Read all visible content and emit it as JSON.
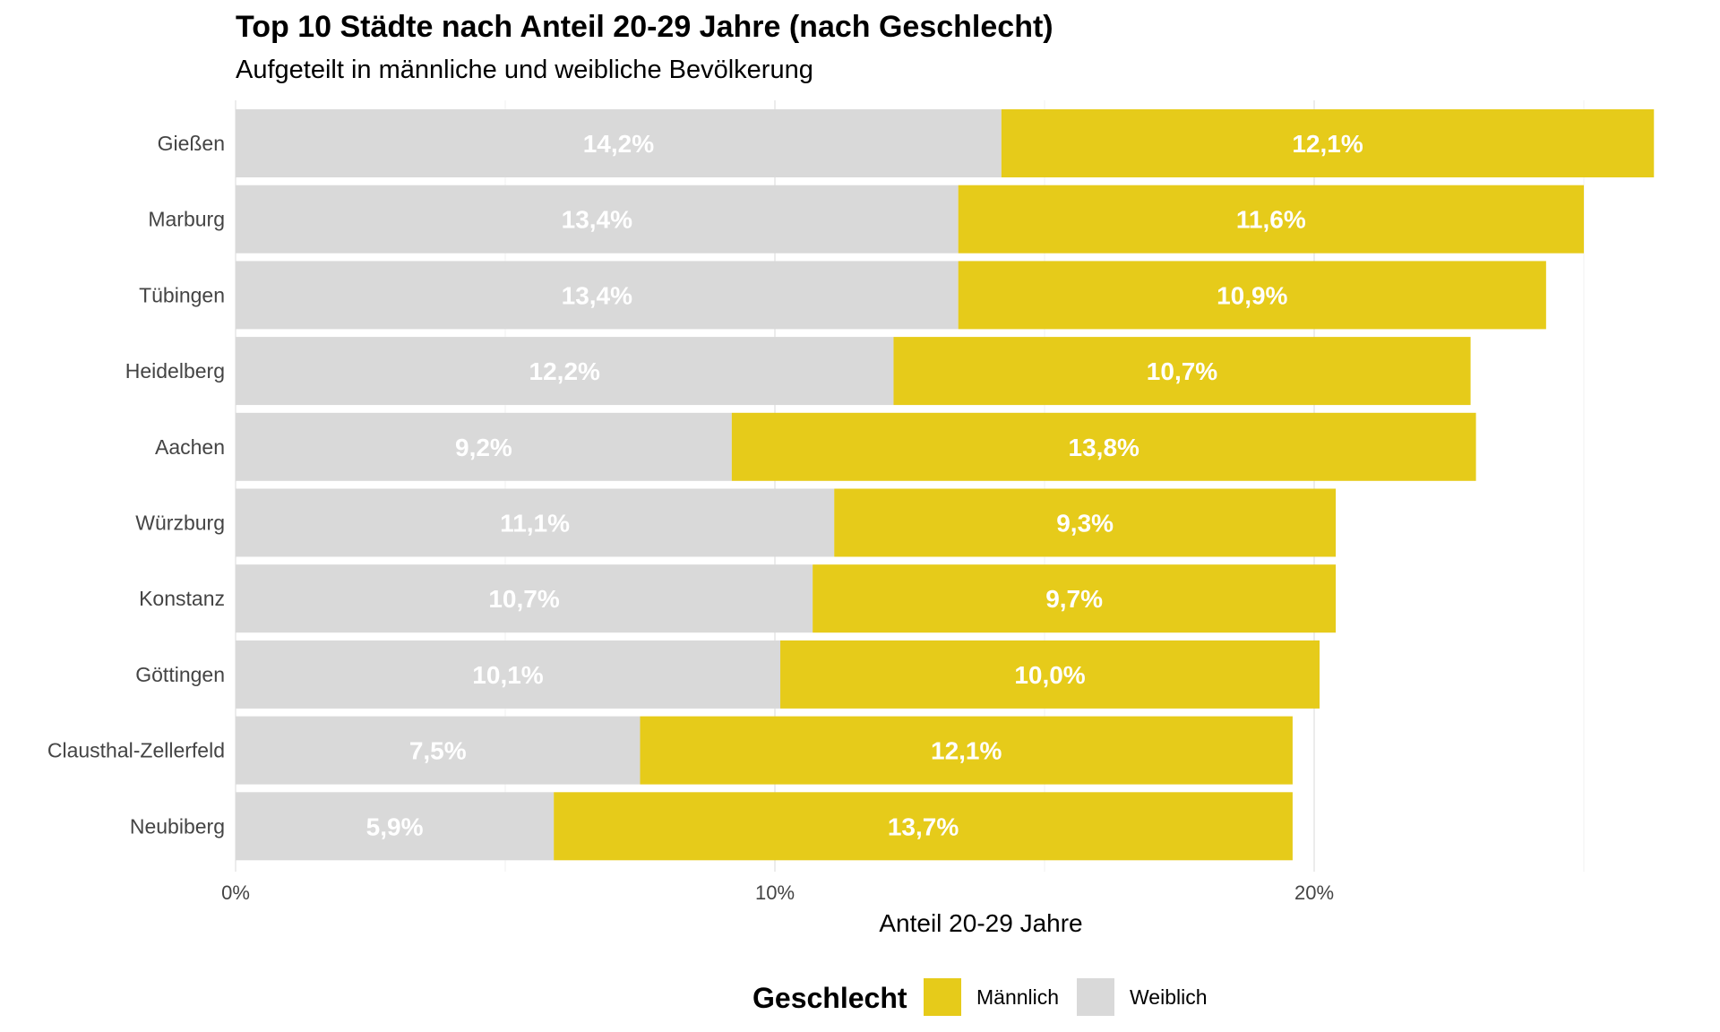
{
  "chart_data": {
    "type": "bar",
    "orientation": "horizontal",
    "stacked": true,
    "title": "Top 10 Städte nach Anteil 20-29 Jahre (nach Geschlecht)",
    "subtitle": "Aufgeteilt in männliche und weibliche Bevölkerung",
    "xlabel": "Anteil 20-29 Jahre",
    "ylabel": "",
    "xlim": [
      0,
      26.3
    ],
    "xticks": [
      "0%",
      "10%",
      "20%"
    ],
    "grid": true,
    "legend": {
      "title": "Geschlecht",
      "position": "bottom"
    },
    "categories": [
      "Gießen",
      "Marburg",
      "Tübingen",
      "Heidelberg",
      "Aachen",
      "Würzburg",
      "Konstanz",
      "Göttingen",
      "Clausthal-Zellerfeld",
      "Neubiberg"
    ],
    "series": [
      {
        "name": "Weiblich",
        "color": "#d9d9d9",
        "values": [
          14.2,
          13.4,
          13.4,
          12.2,
          9.2,
          11.1,
          10.7,
          10.1,
          7.5,
          5.9
        ],
        "labels": [
          "14,2%",
          "13,4%",
          "13,4%",
          "12,2%",
          "9,2%",
          "11,1%",
          "10,7%",
          "10,1%",
          "7,5%",
          "5,9%"
        ]
      },
      {
        "name": "Männlich",
        "color": "#e6cb1a",
        "values": [
          12.1,
          11.6,
          10.9,
          10.7,
          13.8,
          9.3,
          9.7,
          10.0,
          12.1,
          13.7
        ],
        "labels": [
          "12,1%",
          "11,6%",
          "10,9%",
          "10,7%",
          "13,8%",
          "9,3%",
          "9,7%",
          "10,0%",
          "12,1%",
          "13,7%"
        ]
      }
    ]
  }
}
